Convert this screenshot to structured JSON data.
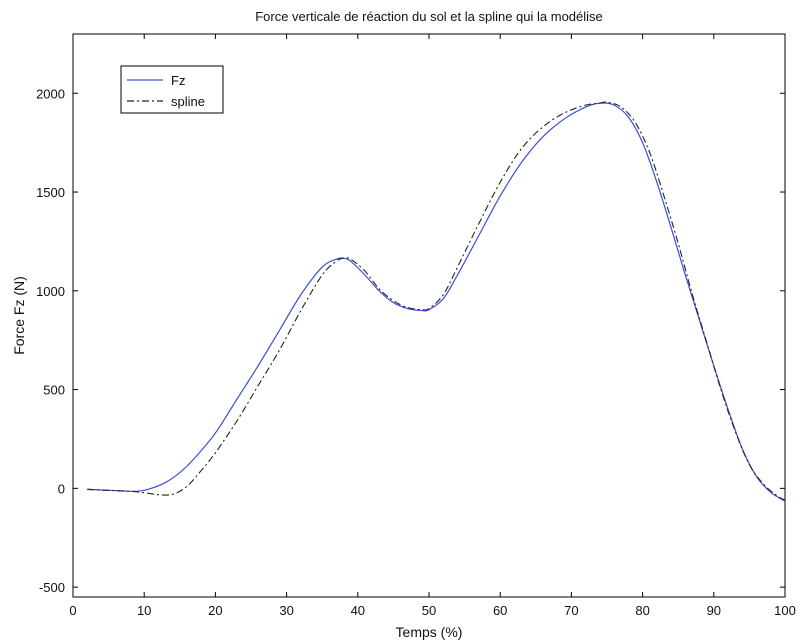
{
  "chart_data": {
    "type": "line",
    "title": "Force verticale de réaction du sol et la spline qui la modélise",
    "xlabel": "Temps (%)",
    "ylabel": "Force Fz (N)",
    "xlim": [
      0,
      100
    ],
    "ylim": [
      -550,
      2300
    ],
    "xticks": [
      "0",
      "10",
      "20",
      "30",
      "40",
      "50",
      "60",
      "70",
      "80",
      "90",
      "100"
    ],
    "yticks": [
      "-500",
      "0",
      "500",
      "1000",
      "1500",
      "2000"
    ],
    "legend_position": "top-left",
    "series": [
      {
        "name": "Fz",
        "color": "#3a4fd8",
        "style": "solid",
        "x": [
          2,
          5,
          9,
          11,
          13,
          15,
          17,
          20,
          23,
          26,
          29,
          32,
          35,
          37,
          38,
          39,
          41,
          43,
          45,
          47,
          49,
          50,
          52,
          54,
          57,
          60,
          63,
          66,
          69,
          72,
          74,
          76,
          78,
          80,
          82,
          84,
          86,
          88,
          90,
          92,
          94,
          96,
          98,
          100
        ],
        "y": [
          -5,
          -10,
          -15,
          0,
          30,
          80,
          150,
          280,
          450,
          620,
          800,
          980,
          1120,
          1160,
          1165,
          1150,
          1080,
          1000,
          940,
          910,
          900,
          905,
          960,
          1080,
          1280,
          1480,
          1650,
          1780,
          1870,
          1930,
          1950,
          1940,
          1880,
          1750,
          1550,
          1320,
          1080,
          850,
          620,
          400,
          200,
          60,
          -20,
          -65
        ]
      },
      {
        "name": "spline",
        "color": "#222222",
        "style": "dashdot",
        "x": [
          2,
          5,
          8,
          10,
          12,
          14,
          16,
          18,
          20,
          23,
          26,
          29,
          32,
          35,
          37,
          38,
          39,
          41,
          43,
          45,
          47,
          49,
          50,
          52,
          54,
          57,
          60,
          63,
          66,
          69,
          72,
          74,
          75,
          77,
          79,
          81,
          83,
          85,
          87,
          89,
          91,
          93,
          95,
          97,
          99,
          100
        ],
        "y": [
          -5,
          -10,
          -15,
          -22,
          -32,
          -30,
          10,
          90,
          180,
          340,
          520,
          700,
          900,
          1080,
          1150,
          1165,
          1160,
          1100,
          1010,
          950,
          915,
          905,
          910,
          980,
          1120,
          1340,
          1550,
          1720,
          1830,
          1900,
          1940,
          1950,
          1955,
          1930,
          1850,
          1700,
          1480,
          1240,
          980,
          740,
          500,
          290,
          120,
          20,
          -40,
          -60
        ]
      }
    ]
  }
}
